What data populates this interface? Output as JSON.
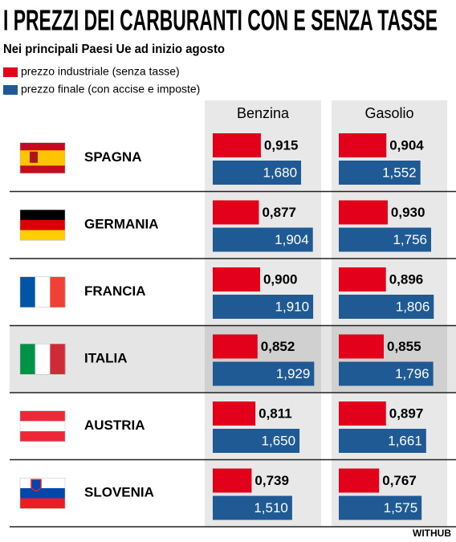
{
  "chart_data": {
    "type": "bar",
    "title": "I PREZZI DEI CARBURANTI CON E SENZA TASSE",
    "subtitle": "Nei principali Paesi Ue ad inizio agosto",
    "categories": [
      "SPAGNA",
      "GERMANIA",
      "FRANCIA",
      "ITALIA",
      "AUSTRIA",
      "SLOVENIA"
    ],
    "highlight_index": 3,
    "legend": [
      "prezzo industriale (senza tasse)",
      "prezzo finale (con accise e imposte)"
    ],
    "groups": [
      {
        "name": "Benzina",
        "series": [
          {
            "name": "prezzo industriale (senza tasse)",
            "color": "#e2001a",
            "values": [
              0.915,
              0.877,
              0.9,
              0.852,
              0.811,
              0.739
            ],
            "value_labels": [
              "0,915",
              "0,877",
              "0,900",
              "0,852",
              "0,811",
              "0,739"
            ]
          },
          {
            "name": "prezzo finale (con accise e imposte)",
            "color": "#1f5a95",
            "values": [
              1.68,
              1.904,
              1.91,
              1.929,
              1.65,
              1.51
            ],
            "value_labels": [
              "1,680",
              "1,904",
              "1,910",
              "1,929",
              "1,650",
              "1,510"
            ]
          }
        ]
      },
      {
        "name": "Gasolio",
        "series": [
          {
            "name": "prezzo industriale (senza tasse)",
            "color": "#e2001a",
            "values": [
              0.904,
              0.93,
              0.896,
              0.855,
              0.897,
              0.767
            ],
            "value_labels": [
              "0,904",
              "0,930",
              "0,896",
              "0,855",
              "0,897",
              "0,767"
            ]
          },
          {
            "name": "prezzo finale (con accise e imposte)",
            "color": "#1f5a95",
            "values": [
              1.552,
              1.756,
              1.806,
              1.796,
              1.661,
              1.575
            ],
            "value_labels": [
              "1,552",
              "1,756",
              "1,806",
              "1,796",
              "1,661",
              "1,575"
            ]
          }
        ]
      }
    ],
    "source": "WITHUB"
  }
}
